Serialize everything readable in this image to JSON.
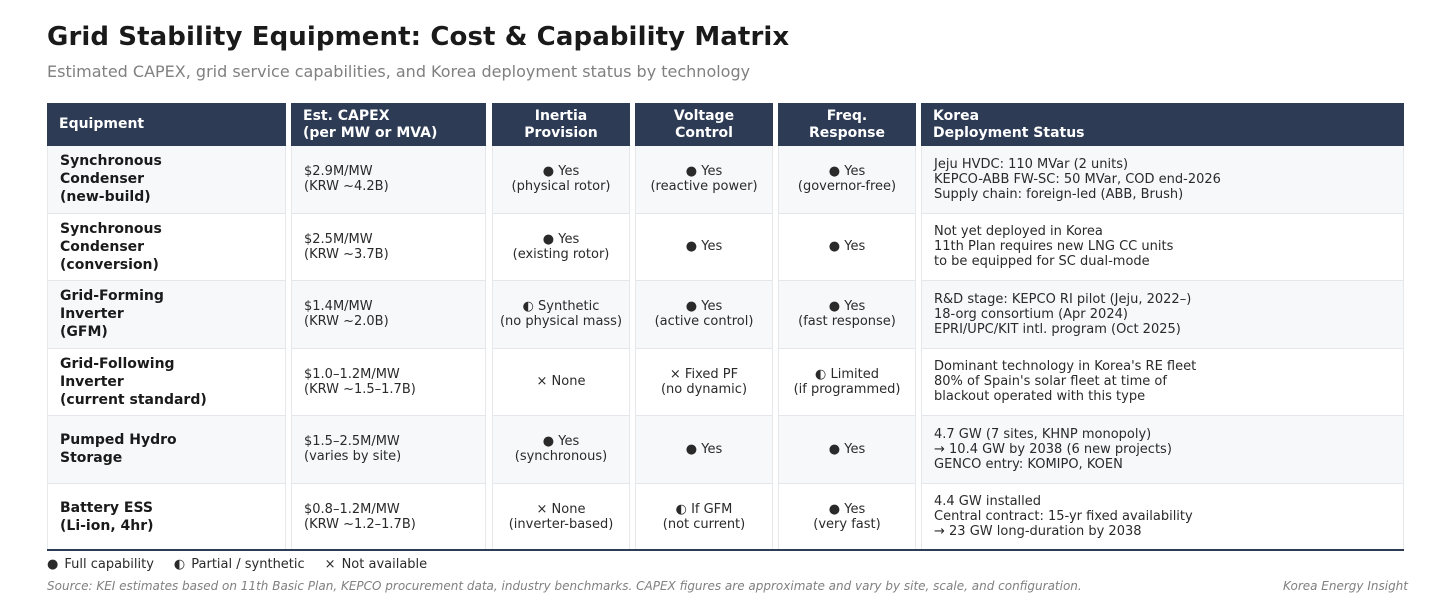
{
  "title": "Grid Stability Equipment: Cost & Capability Matrix",
  "subtitle": "Estimated CAPEX, grid service capabilities, and Korea deployment status by technology",
  "columns": [
    "Equipment",
    "Est. CAPEX\n(per MW or MVA)",
    "Inertia\nProvision",
    "Voltage\nControl",
    "Freq.\nResponse",
    "Korea\nDeployment Status"
  ],
  "rows": [
    {
      "equipment": "Synchronous\nCondenser\n(new-build)",
      "capex": "$2.9M/MW\n(KRW ~4.2B)",
      "inertia": "●  Yes\n(physical rotor)",
      "voltage": "●  Yes\n(reactive power)",
      "frequency": "●  Yes\n(governor-free)",
      "status": "Jeju HVDC: 110 MVar (2 units)\nKEPCO-ABB FW-SC: 50 MVar, COD end-2026\nSupply chain: foreign-led (ABB, Brush)"
    },
    {
      "equipment": "Synchronous\nCondenser\n(conversion)",
      "capex": "$2.5M/MW\n(KRW ~3.7B)",
      "inertia": "●  Yes\n(existing rotor)",
      "voltage": "●  Yes",
      "frequency": "●  Yes",
      "status": "Not yet deployed in Korea\n11th Plan requires new LNG CC units\nto be equipped for SC dual-mode"
    },
    {
      "equipment": "Grid-Forming\nInverter\n(GFM)",
      "capex": "$1.4M/MW\n(KRW ~2.0B)",
      "inertia": "◐  Synthetic\n(no physical mass)",
      "voltage": "●  Yes\n(active control)",
      "frequency": "●  Yes\n(fast response)",
      "status": "R&D stage: KEPCO RI pilot (Jeju, 2022–)\n18-org consortium (Apr 2024)\nEPRI/UPC/KIT intl. program (Oct 2025)"
    },
    {
      "equipment": "Grid-Following\nInverter\n(current standard)",
      "capex": "$1.0–1.2M/MW\n(KRW ~1.5–1.7B)",
      "inertia": "×  None",
      "voltage": "×  Fixed PF\n(no dynamic)",
      "frequency": "◐  Limited\n(if programmed)",
      "status": "Dominant technology in Korea's RE fleet\n80% of Spain's solar fleet at time of\nblackout operated with this type"
    },
    {
      "equipment": "Pumped Hydro\nStorage",
      "capex": "$1.5–2.5M/MW\n(varies by site)",
      "inertia": "●  Yes\n(synchronous)",
      "voltage": "●  Yes",
      "frequency": "●  Yes",
      "status": "4.7 GW (7 sites, KHNP monopoly)\n→ 10.4 GW by 2038 (6 new projects)\nGENCO entry: KOMIPO, KOEN"
    },
    {
      "equipment": "Battery ESS\n(Li-ion, 4hr)",
      "capex": "$0.8–1.2M/MW\n(KRW ~1.2–1.7B)",
      "inertia": "×  None\n(inverter-based)",
      "voltage": "◐  If GFM\n(not current)",
      "frequency": "●  Yes\n(very fast)",
      "status": "4.4 GW installed\nCentral contract: 15-yr fixed availability\n→ 23 GW long-duration by 2038"
    }
  ],
  "legend": {
    "full": "Full capability",
    "full_icon": "●",
    "partial": "Partial / synthetic",
    "partial_icon": "◐",
    "none": "Not available",
    "none_icon": "×"
  },
  "source": "Source: KEI estimates based on 11th Basic Plan, KEPCO procurement data, industry benchmarks. CAPEX figures are approximate and vary by site, scale, and configuration.",
  "brand": "Korea Energy Insight",
  "colors": {
    "header_bg": "#2d3b55",
    "row_alt": "#f7f8fa"
  }
}
